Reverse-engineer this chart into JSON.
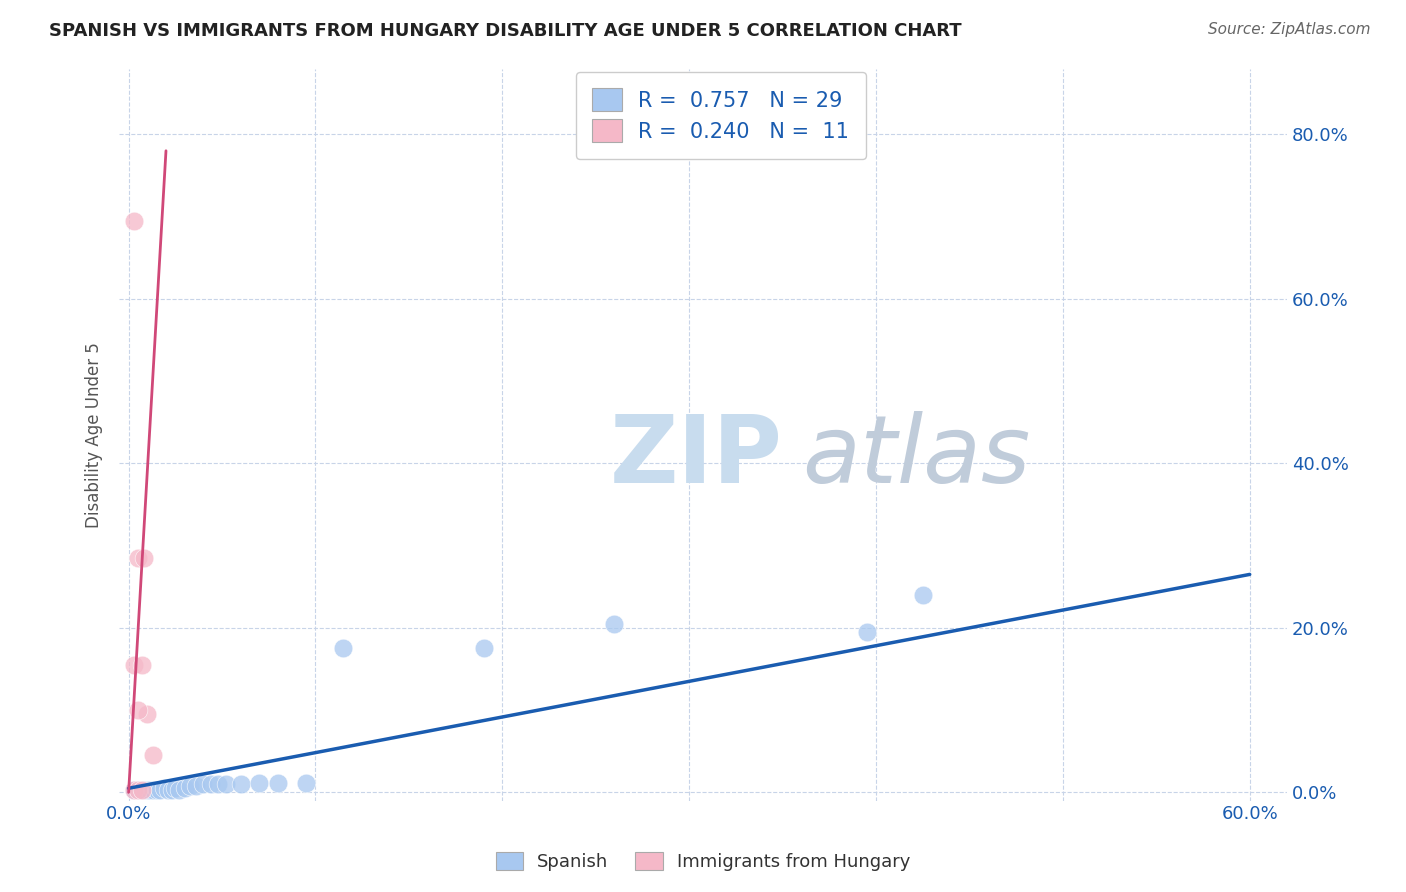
{
  "title": "SPANISH VS IMMIGRANTS FROM HUNGARY DISABILITY AGE UNDER 5 CORRELATION CHART",
  "source": "Source: ZipAtlas.com",
  "ylabel": "Disability Age Under 5",
  "xlabel_spanish": "Spanish",
  "xlabel_hungary": "Immigrants from Hungary",
  "xlim": [
    -0.005,
    0.62
  ],
  "ylim": [
    -0.01,
    0.88
  ],
  "xticks": [
    0.0,
    0.1,
    0.2,
    0.3,
    0.4,
    0.5,
    0.6
  ],
  "yticks": [
    0.0,
    0.2,
    0.4,
    0.6,
    0.8
  ],
  "spanish_R": 0.757,
  "spanish_N": 29,
  "hungary_R": 0.24,
  "hungary_N": 11,
  "spanish_color": "#A8C8F0",
  "hungary_color": "#F5B8C8",
  "spanish_line_color": "#1A5CB0",
  "hungary_trend_color": "#D04878",
  "background_color": "#FFFFFF",
  "grid_color": "#C8D4E8",
  "spanish_points": [
    [
      0.003,
      0.003
    ],
    [
      0.005,
      0.003
    ],
    [
      0.007,
      0.003
    ],
    [
      0.009,
      0.003
    ],
    [
      0.011,
      0.003
    ],
    [
      0.013,
      0.003
    ],
    [
      0.015,
      0.003
    ],
    [
      0.017,
      0.003
    ],
    [
      0.019,
      0.005
    ],
    [
      0.021,
      0.003
    ],
    [
      0.023,
      0.003
    ],
    [
      0.025,
      0.005
    ],
    [
      0.027,
      0.003
    ],
    [
      0.03,
      0.005
    ],
    [
      0.033,
      0.008
    ],
    [
      0.036,
      0.008
    ],
    [
      0.04,
      0.01
    ],
    [
      0.044,
      0.01
    ],
    [
      0.048,
      0.01
    ],
    [
      0.052,
      0.01
    ],
    [
      0.06,
      0.01
    ],
    [
      0.07,
      0.012
    ],
    [
      0.08,
      0.012
    ],
    [
      0.095,
      0.012
    ],
    [
      0.115,
      0.175
    ],
    [
      0.19,
      0.175
    ],
    [
      0.26,
      0.205
    ],
    [
      0.395,
      0.195
    ],
    [
      0.425,
      0.24
    ]
  ],
  "hungary_points": [
    [
      0.003,
      0.003
    ],
    [
      0.005,
      0.003
    ],
    [
      0.007,
      0.003
    ],
    [
      0.01,
      0.095
    ],
    [
      0.013,
      0.045
    ],
    [
      0.003,
      0.155
    ],
    [
      0.007,
      0.155
    ],
    [
      0.005,
      0.285
    ],
    [
      0.008,
      0.285
    ],
    [
      0.003,
      0.695
    ],
    [
      0.005,
      0.1
    ]
  ],
  "spanish_trend_x": [
    0.0,
    0.6
  ],
  "spanish_trend_y": [
    0.005,
    0.265
  ],
  "hungary_trend_x": [
    0.0,
    0.02
  ],
  "hungary_trend_y": [
    0.0,
    0.78
  ]
}
